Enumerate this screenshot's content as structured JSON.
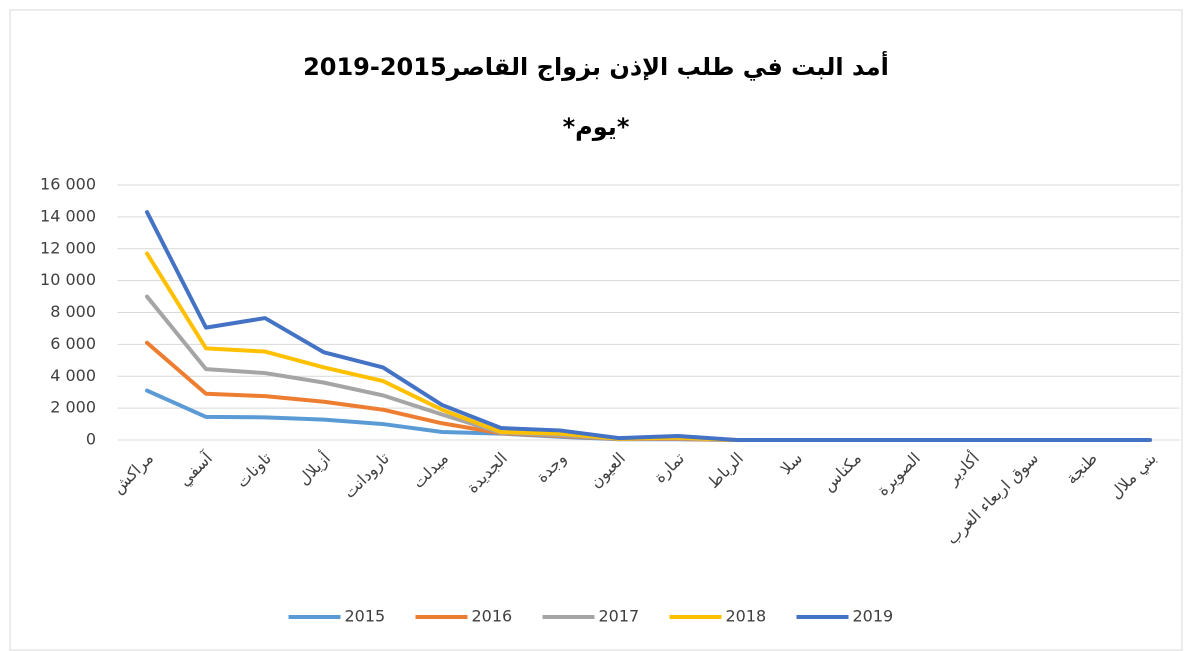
{
  "chart_data": {
    "type": "line",
    "stacked": true,
    "title": "أمد البت في طلب الإذن بزواج القاصر2015-2019",
    "subtitle": "*يوم*",
    "categories": [
      "مراكش",
      "آسفي",
      "تاونات",
      "أزيلال",
      "تارودانت",
      "ميدلت",
      "الجديدة",
      "وجدة",
      "العيون",
      "تمارة",
      "الرباط",
      "سلا",
      "مكناس",
      "الصويرة",
      "أكادير",
      "سوق اربعاء الغرب",
      "طنجة",
      "بني ملال"
    ],
    "series": [
      {
        "name": "2015",
        "color": "#5b9bd5",
        "values": [
          3100,
          1450,
          1420,
          1280,
          1000,
          500,
          400,
          200,
          50,
          50,
          0,
          0,
          0,
          0,
          0,
          0,
          0,
          0
        ]
      },
      {
        "name": "2016",
        "color": "#ed7d31",
        "values": [
          3000,
          1450,
          1330,
          1120,
          900,
          550,
          20,
          50,
          10,
          10,
          0,
          0,
          0,
          0,
          0,
          0,
          0,
          0
        ]
      },
      {
        "name": "2017",
        "color": "#a5a5a5",
        "values": [
          2900,
          1550,
          1450,
          1200,
          900,
          550,
          30,
          50,
          10,
          40,
          0,
          0,
          0,
          0,
          0,
          0,
          0,
          0
        ]
      },
      {
        "name": "2018",
        "color": "#ffc000",
        "values": [
          2700,
          1300,
          1350,
          950,
          900,
          300,
          50,
          100,
          10,
          50,
          0,
          0,
          0,
          0,
          0,
          0,
          0,
          0
        ]
      },
      {
        "name": "2019",
        "color": "#4472c4",
        "values": [
          2600,
          1300,
          2100,
          950,
          850,
          300,
          250,
          200,
          40,
          100,
          0,
          0,
          0,
          0,
          0,
          0,
          0,
          0
        ]
      }
    ],
    "ylim": [
      0,
      16000
    ],
    "yticks": [
      0,
      {
        "value": 2000,
        "label": "2 000"
      },
      {
        "value": 4000,
        "label": "4 000"
      },
      {
        "value": 6000,
        "label": "6 000"
      },
      {
        "value": 8000,
        "label": "8 000"
      },
      {
        "value": 10000,
        "label": "10 000"
      },
      {
        "value": 12000,
        "label": "12 000"
      },
      {
        "value": 14000,
        "label": "14 000"
      },
      {
        "value": 16000,
        "label": "16 000"
      }
    ],
    "grid": true,
    "legend": "bottom"
  }
}
